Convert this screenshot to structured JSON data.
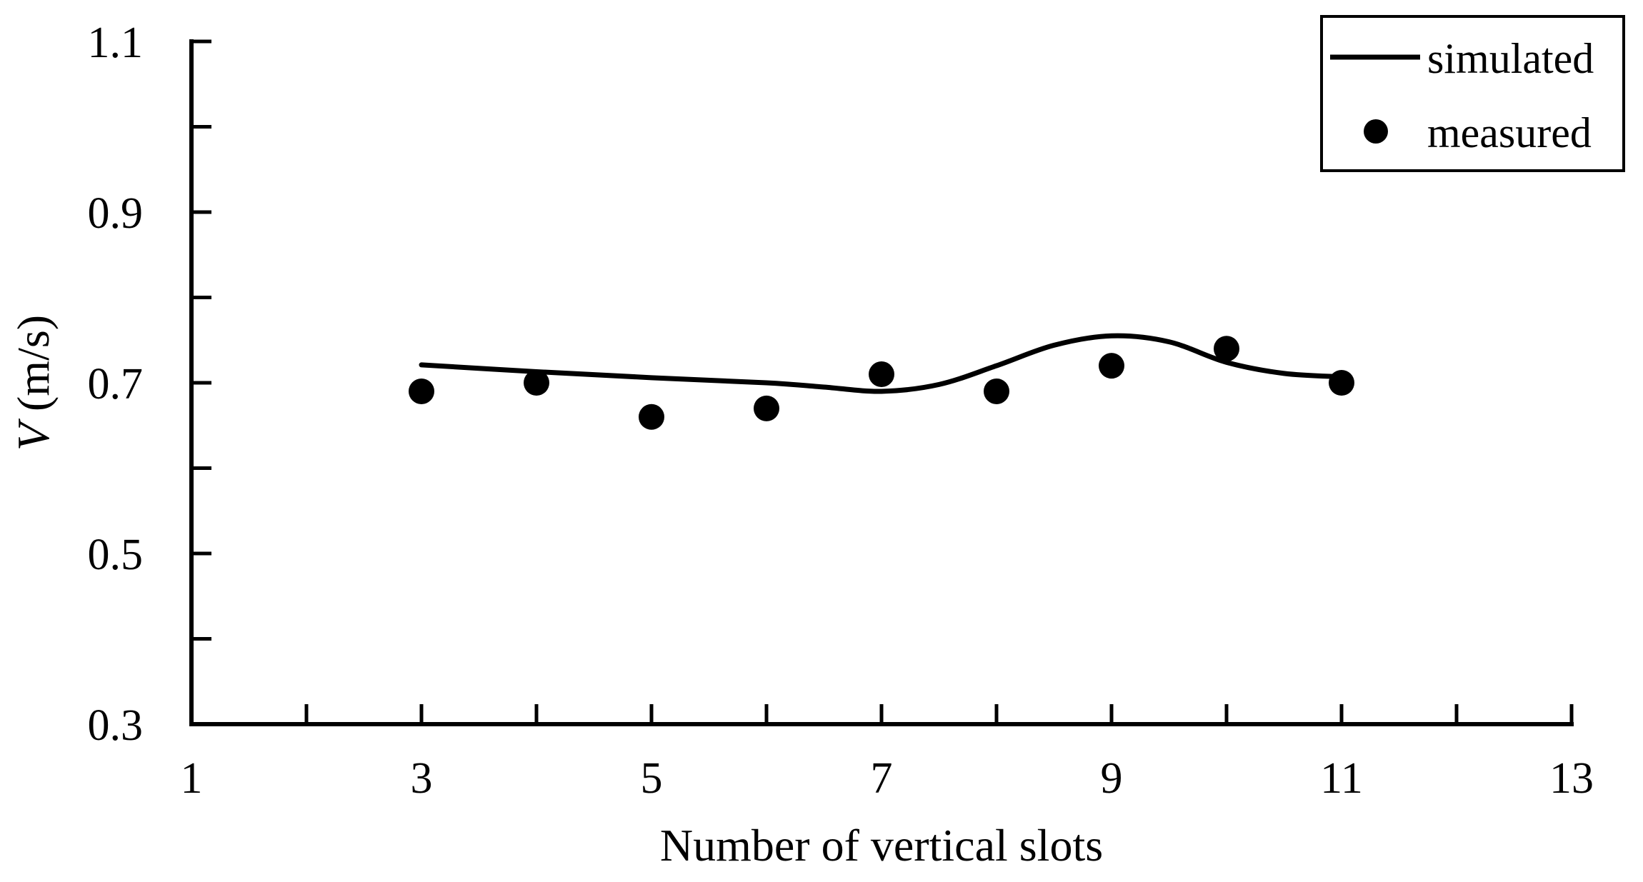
{
  "chart_data": {
    "type": "line",
    "title": "",
    "xlabel": "Number of vertical slots",
    "ylabel": "V (m/s)",
    "ylabel_parts": [
      {
        "text": "V",
        "italic": true
      },
      {
        "text": " (m/s)",
        "italic": false
      }
    ],
    "xlim": [
      1,
      13
    ],
    "ylim": [
      0.3,
      1.1
    ],
    "x_major_ticks": [
      3,
      5,
      7,
      9,
      11,
      13
    ],
    "x_minor_ticks": [
      2,
      4,
      6,
      8,
      10,
      12
    ],
    "x_labeled_ticks": [
      {
        "value": 1,
        "label": "1"
      },
      {
        "value": 3,
        "label": "3"
      },
      {
        "value": 5,
        "label": "5"
      },
      {
        "value": 7,
        "label": "7"
      },
      {
        "value": 9,
        "label": "9"
      },
      {
        "value": 11,
        "label": "11"
      },
      {
        "value": 13,
        "label": "13"
      }
    ],
    "y_major_ticks": [
      0.5,
      0.7,
      0.9,
      1.1
    ],
    "y_minor_ticks": [
      0.4,
      0.6,
      0.8,
      1.0
    ],
    "y_labeled_ticks": [
      {
        "value": 0.3,
        "label": "0.3"
      },
      {
        "value": 0.5,
        "label": "0.5"
      },
      {
        "value": 0.7,
        "label": "0.7"
      },
      {
        "value": 0.9,
        "label": "0.9"
      },
      {
        "value": 1.1,
        "label": "1.1"
      }
    ],
    "grid": false,
    "axis_color": "#000000",
    "legend": {
      "position": "top-right",
      "entries": [
        {
          "label": "simulated",
          "marker": "line"
        },
        {
          "label": "measured",
          "marker": "dot"
        }
      ]
    },
    "series": [
      {
        "name": "simulated",
        "type": "line",
        "color": "#000000",
        "stroke_width": 7,
        "points": [
          [
            3.0,
            0.721
          ],
          [
            4.0,
            0.713
          ],
          [
            5.0,
            0.706
          ],
          [
            6.0,
            0.7
          ],
          [
            6.5,
            0.695
          ],
          [
            7.0,
            0.69
          ],
          [
            7.5,
            0.698
          ],
          [
            8.0,
            0.72
          ],
          [
            8.5,
            0.744
          ],
          [
            9.0,
            0.755
          ],
          [
            9.5,
            0.748
          ],
          [
            10.0,
            0.724
          ],
          [
            10.5,
            0.711
          ],
          [
            11.0,
            0.707
          ]
        ]
      },
      {
        "name": "measured",
        "type": "scatter",
        "color": "#000000",
        "marker_radius": 18,
        "x": [
          3,
          4,
          5,
          6,
          7,
          8,
          9,
          10,
          11
        ],
        "y": [
          0.69,
          0.7,
          0.66,
          0.67,
          0.71,
          0.69,
          0.72,
          0.74,
          0.7
        ]
      }
    ]
  }
}
